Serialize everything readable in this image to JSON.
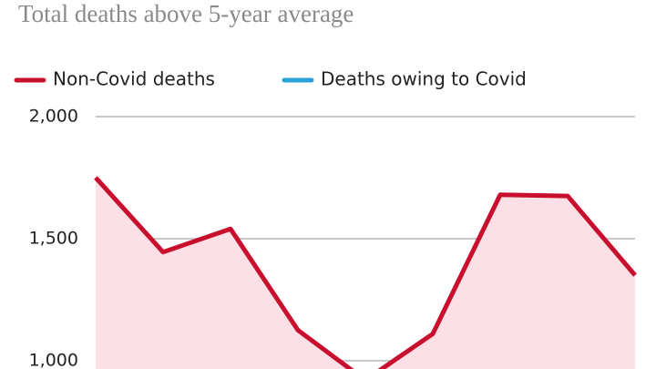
{
  "chart_data": {
    "type": "line",
    "title": "Total deaths above 5-year average",
    "categories": [
      null,
      null,
      null,
      null,
      null,
      null,
      null,
      null,
      null
    ],
    "series": [
      {
        "name": "Non-Covid deaths",
        "color": "#c8102e",
        "values": [
          1750,
          1445,
          1540,
          1125,
          920,
          1110,
          1680,
          1675,
          1350
        ]
      },
      {
        "name": "Deaths owing to Covid",
        "color": "#2a9fd8",
        "values": [
          null,
          null,
          null,
          null,
          null,
          null,
          null,
          null,
          null
        ]
      }
    ],
    "area_fill": "#fde0e5",
    "ylim": [
      966,
      2000
    ],
    "yticks": [
      {
        "value": 1000,
        "label": "1,000"
      },
      {
        "value": 1500,
        "label": "1,500"
      },
      {
        "value": 2000,
        "label": "2,000"
      }
    ],
    "grid": true
  }
}
